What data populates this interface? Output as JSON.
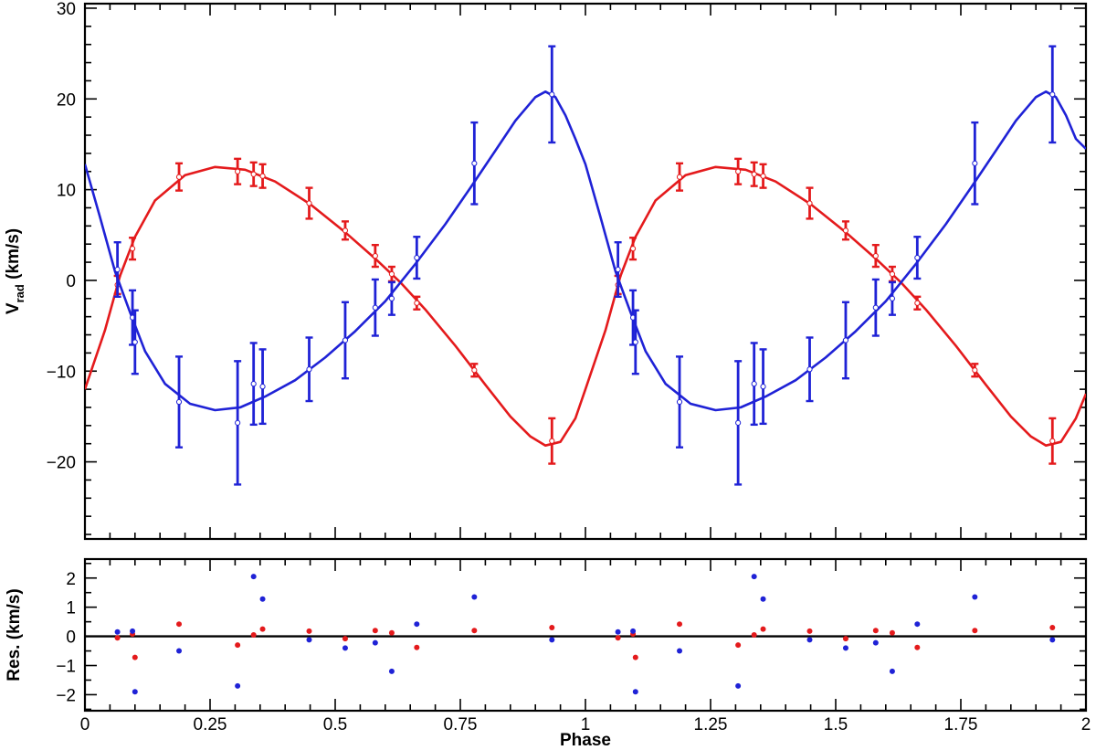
{
  "chart_data": {
    "type": "scatter",
    "xlabel": "Phase",
    "xlim": [
      0,
      2
    ],
    "x_ticks": [
      "0",
      "0.25",
      "0.5",
      "0.75",
      "1",
      "1.25",
      "1.5",
      "1.75",
      "2"
    ],
    "x_tick_values": [
      0,
      0.25,
      0.5,
      0.75,
      1,
      1.25,
      1.5,
      1.75,
      2
    ],
    "panels": [
      {
        "name": "radial-velocity",
        "ylabel_main": "V",
        "ylabel_sub": "rad",
        "ylabel_unit": "(km/s)",
        "ylim": [
          -28.5,
          30.5
        ],
        "y_ticks": [
          "−20",
          "−10",
          "0",
          "10",
          "20",
          "30"
        ],
        "y_tick_values": [
          -20,
          -10,
          0,
          10,
          20,
          30
        ],
        "y_minor_step": 2,
        "series": [
          {
            "color": "#e41a1c",
            "points": [
              {
                "x": 0.065,
                "y": -0.5,
                "err": 1.0
              },
              {
                "x": 0.095,
                "y": 3.5,
                "err": 1.2
              },
              {
                "x": 0.188,
                "y": 11.4,
                "err": 1.5
              },
              {
                "x": 0.305,
                "y": 12.0,
                "err": 1.4
              },
              {
                "x": 0.337,
                "y": 11.7,
                "err": 1.3
              },
              {
                "x": 0.355,
                "y": 11.5,
                "err": 1.3
              },
              {
                "x": 0.448,
                "y": 8.5,
                "err": 1.7
              },
              {
                "x": 0.52,
                "y": 5.5,
                "err": 1.0
              },
              {
                "x": 0.58,
                "y": 2.7,
                "err": 1.2
              },
              {
                "x": 0.613,
                "y": 0.7,
                "err": 0.8
              },
              {
                "x": 0.663,
                "y": -2.5,
                "err": 0.7
              },
              {
                "x": 0.778,
                "y": -9.9,
                "err": 0.7
              },
              {
                "x": 0.933,
                "y": -17.7,
                "err": 2.5
              },
              {
                "x": 1.065,
                "y": -0.5,
                "err": 1.0
              },
              {
                "x": 1.095,
                "y": 3.5,
                "err": 1.2
              },
              {
                "x": 1.188,
                "y": 11.4,
                "err": 1.5
              },
              {
                "x": 1.305,
                "y": 12.0,
                "err": 1.4
              },
              {
                "x": 1.337,
                "y": 11.7,
                "err": 1.3
              },
              {
                "x": 1.355,
                "y": 11.5,
                "err": 1.3
              },
              {
                "x": 1.448,
                "y": 8.5,
                "err": 1.7
              },
              {
                "x": 1.52,
                "y": 5.5,
                "err": 1.0
              },
              {
                "x": 1.58,
                "y": 2.7,
                "err": 1.2
              },
              {
                "x": 1.613,
                "y": 0.7,
                "err": 0.8
              },
              {
                "x": 1.663,
                "y": -2.5,
                "err": 0.7
              },
              {
                "x": 1.778,
                "y": -9.9,
                "err": 0.7
              },
              {
                "x": 1.933,
                "y": -17.7,
                "err": 2.5
              }
            ],
            "curve": [
              [
                0.0,
                -12.0
              ],
              [
                0.04,
                -5.5
              ],
              [
                0.07,
                0.5
              ],
              [
                0.1,
                4.8
              ],
              [
                0.14,
                8.8
              ],
              [
                0.2,
                11.6
              ],
              [
                0.26,
                12.5
              ],
              [
                0.32,
                12.2
              ],
              [
                0.38,
                10.9
              ],
              [
                0.45,
                8.4
              ],
              [
                0.52,
                5.3
              ],
              [
                0.58,
                2.4
              ],
              [
                0.63,
                -0.2
              ],
              [
                0.68,
                -3.2
              ],
              [
                0.74,
                -7.2
              ],
              [
                0.8,
                -11.5
              ],
              [
                0.85,
                -15.0
              ],
              [
                0.89,
                -17.2
              ],
              [
                0.92,
                -18.2
              ],
              [
                0.95,
                -17.8
              ],
              [
                0.98,
                -15.2
              ],
              [
                1.0,
                -12.0
              ],
              [
                1.04,
                -5.5
              ],
              [
                1.07,
                0.5
              ],
              [
                1.1,
                4.8
              ],
              [
                1.14,
                8.8
              ],
              [
                1.2,
                11.6
              ],
              [
                1.26,
                12.5
              ],
              [
                1.32,
                12.2
              ],
              [
                1.38,
                10.9
              ],
              [
                1.45,
                8.4
              ],
              [
                1.52,
                5.3
              ],
              [
                1.58,
                2.4
              ],
              [
                1.63,
                -0.2
              ],
              [
                1.68,
                -3.2
              ],
              [
                1.74,
                -7.2
              ],
              [
                1.8,
                -11.5
              ],
              [
                1.85,
                -15.0
              ],
              [
                1.89,
                -17.2
              ],
              [
                1.92,
                -18.2
              ],
              [
                1.95,
                -17.8
              ],
              [
                1.98,
                -15.2
              ],
              [
                2.0,
                -12.5
              ]
            ]
          },
          {
            "color": "#1f22d6",
            "points": [
              {
                "x": 0.065,
                "y": 1.2,
                "err": 3.0
              },
              {
                "x": 0.095,
                "y": -4.1,
                "err": 3.0
              },
              {
                "x": 0.1,
                "y": -6.8,
                "err": 3.5
              },
              {
                "x": 0.188,
                "y": -13.4,
                "err": 5.0
              },
              {
                "x": 0.305,
                "y": -15.7,
                "err": 6.8
              },
              {
                "x": 0.337,
                "y": -11.4,
                "err": 4.5
              },
              {
                "x": 0.355,
                "y": -11.7,
                "err": 4.1
              },
              {
                "x": 0.448,
                "y": -9.8,
                "err": 3.5
              },
              {
                "x": 0.52,
                "y": -6.6,
                "err": 4.2
              },
              {
                "x": 0.58,
                "y": -3.0,
                "err": 3.1
              },
              {
                "x": 0.613,
                "y": -2.0,
                "err": 1.8
              },
              {
                "x": 0.663,
                "y": 2.5,
                "err": 2.3
              },
              {
                "x": 0.778,
                "y": 12.9,
                "err": 4.5
              },
              {
                "x": 0.933,
                "y": 20.5,
                "err": 5.3
              },
              {
                "x": 1.065,
                "y": 1.2,
                "err": 3.0
              },
              {
                "x": 1.095,
                "y": -4.1,
                "err": 3.0
              },
              {
                "x": 1.1,
                "y": -6.8,
                "err": 3.5
              },
              {
                "x": 1.188,
                "y": -13.4,
                "err": 5.0
              },
              {
                "x": 1.305,
                "y": -15.7,
                "err": 6.8
              },
              {
                "x": 1.337,
                "y": -11.4,
                "err": 4.5
              },
              {
                "x": 1.355,
                "y": -11.7,
                "err": 4.1
              },
              {
                "x": 1.448,
                "y": -9.8,
                "err": 3.5
              },
              {
                "x": 1.52,
                "y": -6.6,
                "err": 4.2
              },
              {
                "x": 1.58,
                "y": -3.0,
                "err": 3.1
              },
              {
                "x": 1.613,
                "y": -2.0,
                "err": 1.8
              },
              {
                "x": 1.663,
                "y": 2.5,
                "err": 2.3
              },
              {
                "x": 1.778,
                "y": 12.9,
                "err": 4.5
              },
              {
                "x": 1.933,
                "y": 20.5,
                "err": 5.3
              }
            ],
            "curve": [
              [
                0.0,
                12.8
              ],
              [
                0.03,
                7.0
              ],
              [
                0.06,
                1.0
              ],
              [
                0.09,
                -3.5
              ],
              [
                0.12,
                -7.8
              ],
              [
                0.16,
                -11.4
              ],
              [
                0.21,
                -13.6
              ],
              [
                0.26,
                -14.3
              ],
              [
                0.31,
                -14.0
              ],
              [
                0.36,
                -12.8
              ],
              [
                0.42,
                -11.0
              ],
              [
                0.48,
                -8.5
              ],
              [
                0.54,
                -5.6
              ],
              [
                0.6,
                -2.3
              ],
              [
                0.66,
                1.8
              ],
              [
                0.72,
                6.2
              ],
              [
                0.77,
                10.2
              ],
              [
                0.82,
                14.3
              ],
              [
                0.86,
                17.6
              ],
              [
                0.9,
                20.2
              ],
              [
                0.92,
                20.8
              ],
              [
                0.94,
                20.2
              ],
              [
                0.96,
                18.2
              ],
              [
                0.98,
                15.6
              ],
              [
                1.0,
                12.8
              ],
              [
                1.03,
                7.0
              ],
              [
                1.06,
                1.0
              ],
              [
                1.09,
                -3.5
              ],
              [
                1.12,
                -7.8
              ],
              [
                1.16,
                -11.4
              ],
              [
                1.21,
                -13.6
              ],
              [
                1.26,
                -14.3
              ],
              [
                1.31,
                -14.0
              ],
              [
                1.36,
                -12.8
              ],
              [
                1.42,
                -11.0
              ],
              [
                1.48,
                -8.5
              ],
              [
                1.54,
                -5.6
              ],
              [
                1.6,
                -2.3
              ],
              [
                1.66,
                1.8
              ],
              [
                1.72,
                6.2
              ],
              [
                1.77,
                10.2
              ],
              [
                1.82,
                14.3
              ],
              [
                1.86,
                17.6
              ],
              [
                1.9,
                20.2
              ],
              [
                1.92,
                20.8
              ],
              [
                1.94,
                20.2
              ],
              [
                1.96,
                18.2
              ],
              [
                1.98,
                15.6
              ],
              [
                2.0,
                14.5
              ]
            ]
          }
        ]
      },
      {
        "name": "residuals",
        "ylabel_main": "Res.",
        "ylabel_sub": "",
        "ylabel_unit": "(km/s)",
        "ylim": [
          -2.55,
          2.65
        ],
        "y_ticks": [
          "−2",
          "−1",
          "0",
          "1",
          "2"
        ],
        "y_tick_values": [
          -2,
          -1,
          0,
          1,
          2
        ],
        "y_minor_step": 0.5,
        "zero_line": true,
        "series": [
          {
            "color": "#e41a1c",
            "points": [
              {
                "x": 0.065,
                "y": -0.05
              },
              {
                "x": 0.095,
                "y": 0.08
              },
              {
                "x": 0.1,
                "y": -0.72
              },
              {
                "x": 0.188,
                "y": 0.42
              },
              {
                "x": 0.305,
                "y": -0.3
              },
              {
                "x": 0.337,
                "y": 0.05
              },
              {
                "x": 0.355,
                "y": 0.25
              },
              {
                "x": 0.448,
                "y": 0.18
              },
              {
                "x": 0.52,
                "y": -0.08
              },
              {
                "x": 0.58,
                "y": 0.2
              },
              {
                "x": 0.613,
                "y": 0.12
              },
              {
                "x": 0.663,
                "y": -0.38
              },
              {
                "x": 0.778,
                "y": 0.2
              },
              {
                "x": 0.933,
                "y": 0.3
              },
              {
                "x": 1.065,
                "y": -0.05
              },
              {
                "x": 1.095,
                "y": 0.08
              },
              {
                "x": 1.1,
                "y": -0.72
              },
              {
                "x": 1.188,
                "y": 0.42
              },
              {
                "x": 1.305,
                "y": -0.3
              },
              {
                "x": 1.337,
                "y": 0.05
              },
              {
                "x": 1.355,
                "y": 0.25
              },
              {
                "x": 1.448,
                "y": 0.18
              },
              {
                "x": 1.52,
                "y": -0.08
              },
              {
                "x": 1.58,
                "y": 0.2
              },
              {
                "x": 1.613,
                "y": 0.12
              },
              {
                "x": 1.663,
                "y": -0.38
              },
              {
                "x": 1.778,
                "y": 0.2
              },
              {
                "x": 1.933,
                "y": 0.3
              }
            ]
          },
          {
            "color": "#1f22d6",
            "points": [
              {
                "x": 0.065,
                "y": 0.15
              },
              {
                "x": 0.095,
                "y": 0.18
              },
              {
                "x": 0.1,
                "y": -1.9
              },
              {
                "x": 0.188,
                "y": -0.5
              },
              {
                "x": 0.305,
                "y": -1.7
              },
              {
                "x": 0.337,
                "y": 2.05
              },
              {
                "x": 0.355,
                "y": 1.28
              },
              {
                "x": 0.448,
                "y": -0.12
              },
              {
                "x": 0.52,
                "y": -0.4
              },
              {
                "x": 0.58,
                "y": -0.22
              },
              {
                "x": 0.613,
                "y": -1.2
              },
              {
                "x": 0.663,
                "y": 0.42
              },
              {
                "x": 0.778,
                "y": 1.35
              },
              {
                "x": 0.933,
                "y": -0.12
              },
              {
                "x": 1.065,
                "y": 0.15
              },
              {
                "x": 1.095,
                "y": 0.18
              },
              {
                "x": 1.1,
                "y": -1.9
              },
              {
                "x": 1.188,
                "y": -0.5
              },
              {
                "x": 1.305,
                "y": -1.7
              },
              {
                "x": 1.337,
                "y": 2.05
              },
              {
                "x": 1.355,
                "y": 1.28
              },
              {
                "x": 1.448,
                "y": -0.12
              },
              {
                "x": 1.52,
                "y": -0.4
              },
              {
                "x": 1.58,
                "y": -0.22
              },
              {
                "x": 1.613,
                "y": -1.2
              },
              {
                "x": 1.663,
                "y": 0.42
              },
              {
                "x": 1.778,
                "y": 1.35
              },
              {
                "x": 1.933,
                "y": -0.12
              }
            ]
          }
        ]
      }
    ]
  }
}
